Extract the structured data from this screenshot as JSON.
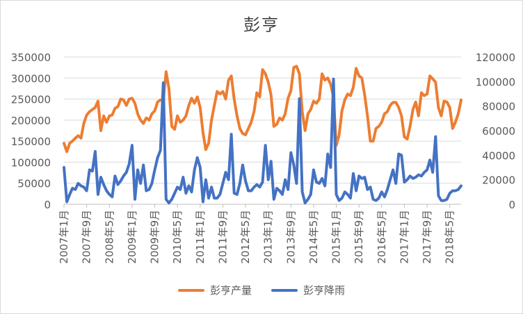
{
  "colors": {
    "production": "#ED7D31",
    "rainfall": "#4472C4",
    "grid": "#D9D9D9",
    "text": "#595959"
  },
  "chart_data": {
    "type": "line",
    "title": "彭亨",
    "x_labels": [
      "2007年1月",
      "2007年9月",
      "2008年5月",
      "2009年1月",
      "2009年9月",
      "2010年5月",
      "2011年1月",
      "2011年9月",
      "2012年5月",
      "2013年1月",
      "2013年9月",
      "2014年5月",
      "2015年1月",
      "2015年9月",
      "2016年5月",
      "2017年1月",
      "2017年9月",
      "2018年5月"
    ],
    "x_start": "2007-01",
    "y_left": {
      "ticks": [
        "0",
        "50000",
        "100000",
        "150000",
        "200000",
        "250000",
        "300000",
        "350000"
      ],
      "min": 0,
      "max": 350000
    },
    "y_right": {
      "ticks": [
        "0",
        "20000",
        "40000",
        "60000",
        "80000",
        "100000",
        "120000"
      ],
      "min": 0,
      "max": 120000
    },
    "series": [
      {
        "name": "彭亨产量",
        "axis": "left",
        "color": "#ED7D31",
        "values": [
          145000,
          125000,
          145000,
          150000,
          157000,
          163000,
          157000,
          192000,
          212000,
          220000,
          225000,
          230000,
          245000,
          175000,
          210000,
          195000,
          210000,
          212000,
          228000,
          232000,
          250000,
          248000,
          235000,
          250000,
          252000,
          240000,
          215000,
          200000,
          192000,
          205000,
          200000,
          215000,
          222000,
          243000,
          248000,
          245000,
          315000,
          275000,
          185000,
          178000,
          210000,
          195000,
          200000,
          210000,
          235000,
          252000,
          240000,
          255000,
          230000,
          170000,
          130000,
          145000,
          200000,
          235000,
          268000,
          262000,
          268000,
          250000,
          295000,
          305000,
          250000,
          210000,
          180000,
          168000,
          165000,
          180000,
          195000,
          220000,
          265000,
          255000,
          320000,
          310000,
          290000,
          260000,
          185000,
          190000,
          205000,
          200000,
          215000,
          252000,
          270000,
          325000,
          328000,
          310000,
          220000,
          175000,
          215000,
          225000,
          245000,
          240000,
          250000,
          310000,
          295000,
          300000,
          285000,
          255000,
          140000,
          165000,
          222000,
          248000,
          262000,
          258000,
          278000,
          323000,
          305000,
          300000,
          260000,
          210000,
          150000,
          150000,
          180000,
          185000,
          195000,
          215000,
          220000,
          235000,
          242000,
          242000,
          230000,
          210000,
          160000,
          155000,
          185000,
          225000,
          243000,
          210000,
          265000,
          258000,
          262000,
          305000,
          298000,
          290000,
          230000,
          210000,
          245000,
          243000,
          230000,
          180000,
          195000,
          215000,
          248000
        ]
      },
      {
        "name": "彭亨降雨",
        "axis": "right",
        "color": "#4472C4",
        "values": [
          30000,
          2000,
          8000,
          13000,
          12000,
          17000,
          15000,
          14000,
          11000,
          28000,
          27000,
          43000,
          8000,
          22000,
          16000,
          11000,
          8000,
          6000,
          23000,
          16000,
          19000,
          23000,
          26000,
          33000,
          48000,
          4000,
          28000,
          17000,
          32000,
          11000,
          12000,
          17000,
          28000,
          38000,
          44000,
          99000,
          4000,
          1000,
          4000,
          9000,
          14000,
          12000,
          22000,
          9000,
          15000,
          10000,
          28000,
          38000,
          30000,
          2000,
          20000,
          5000,
          14000,
          5000,
          5000,
          8000,
          17000,
          26000,
          20000,
          57000,
          9000,
          8000,
          17000,
          32000,
          19000,
          11000,
          11000,
          14000,
          16000,
          14000,
          18000,
          48000,
          20000,
          35000,
          4000,
          13000,
          11000,
          8000,
          20000,
          12000,
          42000,
          32000,
          17000,
          86000,
          10000,
          1000,
          4000,
          8000,
          28000,
          18000,
          17000,
          21000,
          15000,
          41000,
          30000,
          102000,
          8000,
          3000,
          5000,
          10000,
          8000,
          5000,
          25000,
          11000,
          23000,
          21000,
          22000,
          12000,
          14000,
          4000,
          3000,
          5000,
          10000,
          6000,
          12000,
          20000,
          28000,
          17000,
          41000,
          40000,
          18000,
          20000,
          23000,
          21000,
          22000,
          24000,
          23000,
          26000,
          28000,
          36000,
          26000,
          55000,
          7000,
          3000,
          3000,
          4000,
          9000,
          11000,
          11000,
          12000,
          15000
        ]
      }
    ],
    "grid": true,
    "legend_position": "bottom"
  }
}
